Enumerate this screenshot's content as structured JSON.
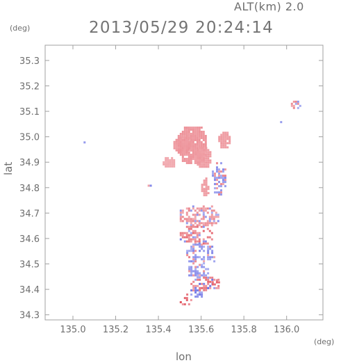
{
  "header": {
    "altitude": "ALT(km) 2.0",
    "timestamp": "2013/05/29 20:24:14"
  },
  "chart_data": {
    "type": "heatmap",
    "title": "2013/05/29 20:24:14",
    "subtitle": "ALT(km) 2.0",
    "xlabel": "lon",
    "ylabel": "lat",
    "xunit": "(deg)",
    "yunit": "(deg)",
    "xlim": [
      134.87,
      136.17
    ],
    "ylim": [
      34.28,
      35.36
    ],
    "grid": false,
    "x_ticks": [
      135.0,
      135.2,
      135.4,
      135.6,
      135.8,
      136.0
    ],
    "x_tick_labels": [
      "135.0",
      "135.2",
      "135.4",
      "135.6",
      "135.8",
      "136.0"
    ],
    "y_ticks": [
      34.3,
      34.4,
      34.5,
      34.6,
      34.7,
      34.8,
      34.9,
      35.0,
      35.1,
      35.2,
      35.3
    ],
    "y_tick_labels": [
      "34.3",
      "34.4",
      "34.5",
      "34.6",
      "34.7",
      "34.8",
      "34.9",
      "35.0",
      "35.1",
      "35.2",
      "35.3"
    ],
    "colors": {
      "positive": "#f4a6aa",
      "positive_strong": "#e8505a",
      "negative": "#aab0ee",
      "negative_strong": "#5a62dc"
    },
    "regions": [
      {
        "lon": [
          135.49,
          135.62
        ],
        "lat": [
          34.9,
          35.04
        ],
        "value": 0.35
      },
      {
        "lon": [
          135.47,
          135.55
        ],
        "lat": [
          34.94,
          35.0
        ],
        "value": 0.35
      },
      {
        "lon": [
          135.57,
          135.64
        ],
        "lat": [
          34.88,
          34.96
        ],
        "value": 0.3
      },
      {
        "lon": [
          135.68,
          135.73
        ],
        "lat": [
          34.96,
          35.02
        ],
        "value": 0.3
      },
      {
        "lon": [
          135.42,
          135.47
        ],
        "lat": [
          34.88,
          34.92
        ],
        "value": 0.2
      },
      {
        "lon": [
          135.6,
          135.63
        ],
        "lat": [
          34.77,
          34.84
        ],
        "value": 0.3
      },
      {
        "lon": [
          135.95,
          135.97
        ],
        "lat": [
          35.05,
          35.07
        ],
        "value": 0.5
      },
      {
        "lon": [
          136.02,
          136.06
        ],
        "lat": [
          35.11,
          35.15
        ],
        "value": 0.45
      },
      {
        "lon": [
          135.04,
          135.06
        ],
        "lat": [
          34.98,
          34.99
        ],
        "value": -0.35
      },
      {
        "lon": [
          135.34,
          135.37
        ],
        "lat": [
          34.81,
          34.82
        ],
        "value": -0.5
      },
      {
        "lon": [
          135.5,
          135.68
        ],
        "lat": [
          34.65,
          34.73
        ],
        "value": 0.4
      },
      {
        "lon": [
          135.5,
          135.65
        ],
        "lat": [
          34.58,
          34.65
        ],
        "value": 0.6
      },
      {
        "lon": [
          135.53,
          135.66
        ],
        "lat": [
          34.5,
          34.58
        ],
        "value": -0.5
      },
      {
        "lon": [
          135.53,
          135.63
        ],
        "lat": [
          34.45,
          34.5
        ],
        "value": -0.4
      },
      {
        "lon": [
          135.55,
          135.68
        ],
        "lat": [
          34.4,
          34.45
        ],
        "value": 0.7
      },
      {
        "lon": [
          135.64,
          135.69
        ],
        "lat": [
          34.42,
          34.44
        ],
        "value": 0.9
      },
      {
        "lon": [
          135.53,
          135.6
        ],
        "lat": [
          34.37,
          34.4
        ],
        "value": -0.6
      },
      {
        "lon": [
          135.5,
          135.55
        ],
        "lat": [
          34.34,
          34.37
        ],
        "value": 0.8
      },
      {
        "lon": [
          135.65,
          135.71
        ],
        "lat": [
          34.77,
          34.9
        ],
        "value": -0.45
      }
    ]
  }
}
